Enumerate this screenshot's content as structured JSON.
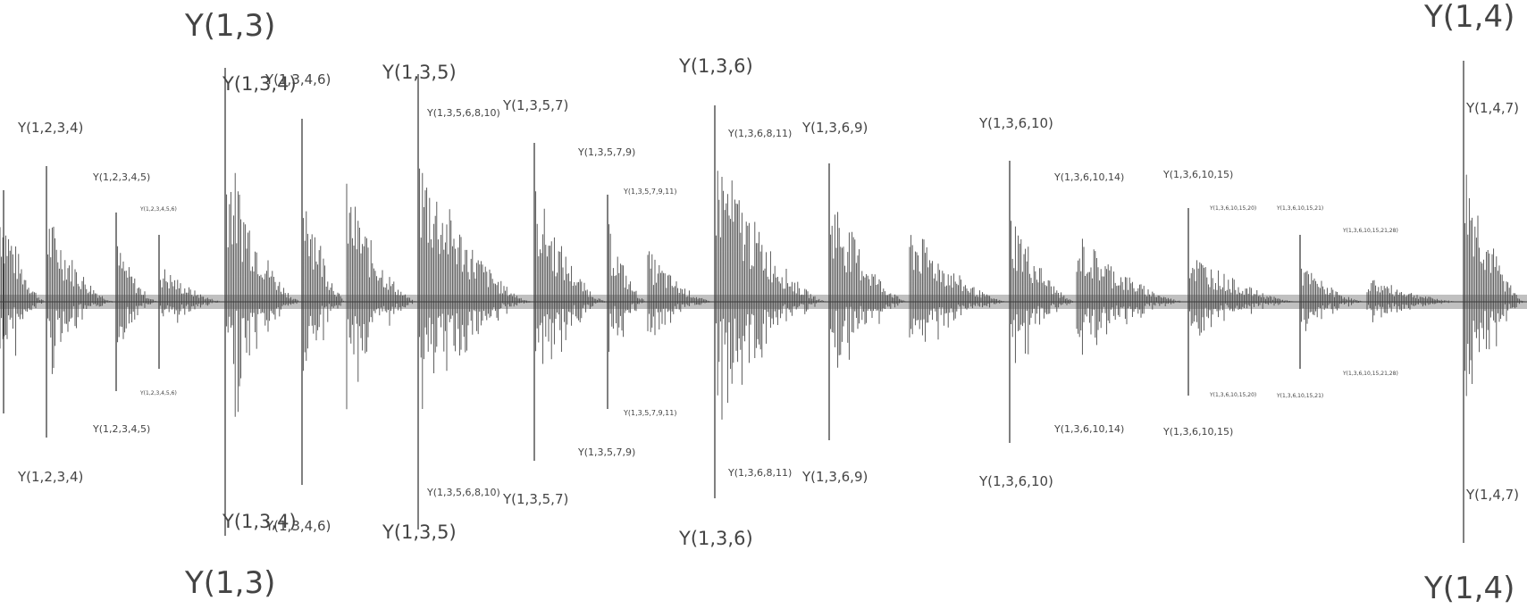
{
  "labels": {
    "y_1_3": "Y(1,3)",
    "y_1_4": "Y(1,4)",
    "y_1_2_3_4": "Y(1,2,3,4)",
    "y_1_2_3_4_5": "Y(1,2,3,4,5)",
    "y_1_2_3_4_5_6": "Y(1,2,3,4,5,6)",
    "y_1_3_4": "Y(1,3,4)",
    "y_1_3_4_6": "Y(1,3,4,6)",
    "y_1_3_5": "Y(1,3,5)",
    "y_1_3_5_6_8_10": "Y(1,3,5,6,8,10)",
    "y_1_3_5_7": "Y(1,3,5,7)",
    "y_1_3_5_7_9": "Y(1,3,5,7,9)",
    "y_1_3_5_7_9_11": "Y(1,3,5,7,9,11)",
    "y_1_3_6": "Y(1,3,6)",
    "y_1_3_6_8_11": "Y(1,3,6,8,11)",
    "y_1_3_6_9": "Y(1,3,6,9)",
    "y_1_3_6_10": "Y(1,3,6,10)",
    "y_1_3_6_10_14": "Y(1,3,6,10,14)",
    "y_1_3_6_10_15": "Y(1,3,6,10,15)",
    "y_1_3_6_10_15_20": "Y(1,3,6,10,15,20)",
    "y_1_3_6_10_15_21": "Y(1,3,6,10,15,21)",
    "y_1_3_6_10_15_21_28": "Y(1,3,6,10,15,21,28)",
    "y_1_4_7": "Y(1,4,7)"
  },
  "colors": {
    "waveform": "#4a4a4a",
    "marker": "#3c3c3c",
    "label": "#444444"
  }
}
